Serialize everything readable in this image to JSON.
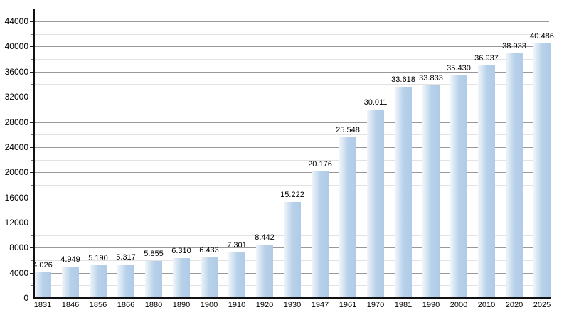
{
  "chart_data": {
    "type": "bar",
    "categories": [
      "1831",
      "1846",
      "1856",
      "1866",
      "1880",
      "1890",
      "1900",
      "1910",
      "1920",
      "1930",
      "1947",
      "1961",
      "1970",
      "1981",
      "1990",
      "2000",
      "2010",
      "2020",
      "2025"
    ],
    "values": [
      4026,
      4949,
      5190,
      5317,
      5855,
      6310,
      6433,
      7301,
      8442,
      15222,
      20176,
      25548,
      30011,
      33618,
      33833,
      35430,
      36937,
      38933,
      40486
    ],
    "value_labels": [
      "4.026",
      "4.949",
      "5.190",
      "5.317",
      "5.855",
      "6.310",
      "6.433",
      "7.301",
      "8.442",
      "15.222",
      "20.176",
      "25.548",
      "30.011",
      "33.618",
      "33.833",
      "35.430",
      "36.937",
      "38.933",
      "40.486"
    ],
    "xlabel": "",
    "ylabel": "",
    "y_axis": {
      "min": 0,
      "max": 44000,
      "major_step": 4000,
      "minor_step": 2000,
      "tick_labels": [
        "0",
        "4000",
        "8000",
        "12000",
        "16000",
        "20000",
        "24000",
        "28000",
        "32000",
        "36000",
        "40000",
        "44000"
      ]
    },
    "grid": "major-and-minor-horizontal",
    "legend": "none",
    "colors": {
      "bar_fill": "#b8d1ea",
      "bar_fill_light": "#f1f6fb",
      "bar_fill_dark": "#b0cbe7",
      "grid_major": "#999999",
      "grid_minor": "#e2e2e2",
      "axis": "#111111",
      "label_text": "#000000"
    }
  }
}
